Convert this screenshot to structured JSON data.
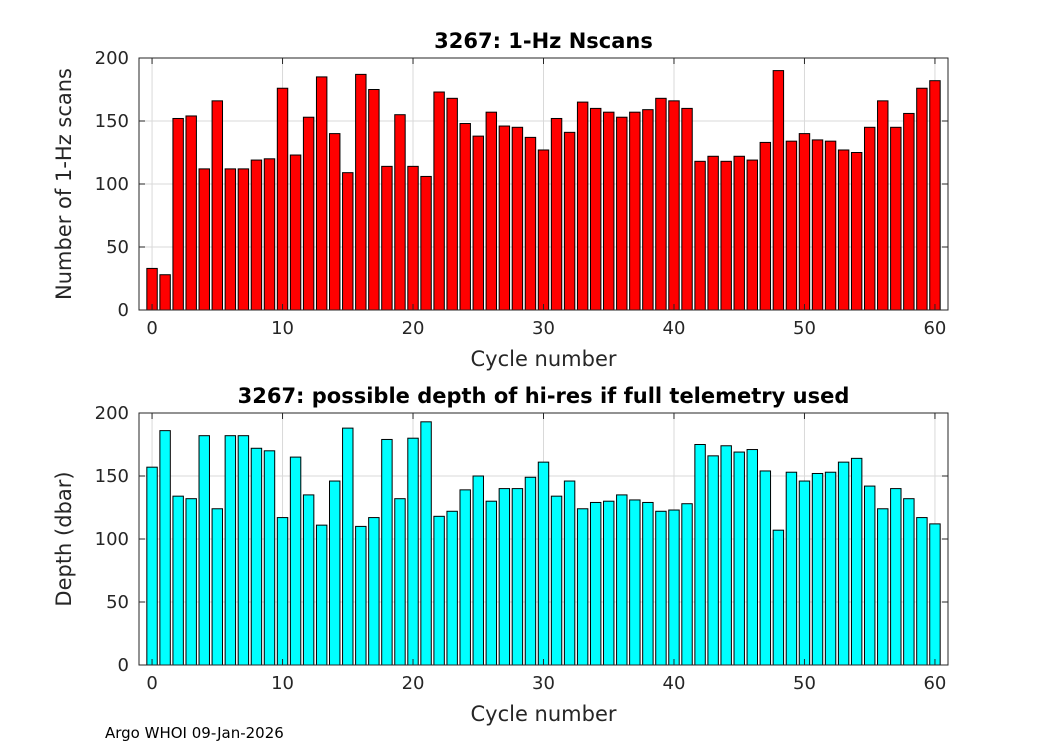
{
  "footer": "Argo WHOI 09-Jan-2026",
  "chart_data": [
    {
      "type": "bar",
      "title": "3267: 1-Hz Nscans",
      "xlabel": "Cycle number",
      "ylabel": "Number of 1-Hz scans",
      "bar_color": "#ff0000",
      "xlim": [
        -1,
        61
      ],
      "ylim": [
        0,
        200
      ],
      "xticks": [
        0,
        10,
        20,
        30,
        40,
        50,
        60
      ],
      "yticks": [
        0,
        50,
        100,
        150,
        200
      ],
      "grid": true,
      "x": [
        0,
        1,
        2,
        3,
        4,
        5,
        6,
        7,
        8,
        9,
        10,
        11,
        12,
        13,
        14,
        15,
        16,
        17,
        18,
        19,
        20,
        21,
        22,
        23,
        24,
        25,
        26,
        27,
        28,
        29,
        30,
        31,
        32,
        33,
        34,
        35,
        36,
        37,
        38,
        39,
        40,
        41,
        42,
        43,
        44,
        45,
        46,
        47,
        48,
        49,
        50,
        51,
        52,
        53,
        54,
        55,
        56,
        57,
        58,
        59,
        60
      ],
      "values": [
        33,
        28,
        152,
        154,
        112,
        166,
        112,
        112,
        119,
        120,
        176,
        123,
        153,
        185,
        140,
        109,
        187,
        175,
        114,
        155,
        114,
        106,
        173,
        168,
        148,
        138,
        157,
        146,
        145,
        137,
        127,
        152,
        141,
        165,
        160,
        157,
        153,
        157,
        159,
        168,
        166,
        160,
        118,
        122,
        118,
        122,
        119,
        133,
        190,
        134,
        140,
        135,
        134,
        127,
        125,
        145,
        166,
        145,
        156,
        176,
        182
      ]
    },
    {
      "type": "bar",
      "title": "3267: possible depth of hi-res if full telemetry used",
      "xlabel": "Cycle number",
      "ylabel": "Depth (dbar)",
      "bar_color": "#00ffff",
      "xlim": [
        -1,
        61
      ],
      "ylim": [
        0,
        200
      ],
      "xticks": [
        0,
        10,
        20,
        30,
        40,
        50,
        60
      ],
      "yticks": [
        0,
        50,
        100,
        150,
        200
      ],
      "grid": true,
      "x": [
        0,
        1,
        2,
        3,
        4,
        5,
        6,
        7,
        8,
        9,
        10,
        11,
        12,
        13,
        14,
        15,
        16,
        17,
        18,
        19,
        20,
        21,
        22,
        23,
        24,
        25,
        26,
        27,
        28,
        29,
        30,
        31,
        32,
        33,
        34,
        35,
        36,
        37,
        38,
        39,
        40,
        41,
        42,
        43,
        44,
        45,
        46,
        47,
        48,
        49,
        50,
        51,
        52,
        53,
        54,
        55,
        56,
        57,
        58,
        59,
        60
      ],
      "values": [
        157,
        186,
        134,
        132,
        182,
        124,
        182,
        182,
        172,
        170,
        117,
        165,
        135,
        111,
        146,
        188,
        110,
        117,
        179,
        132,
        180,
        193,
        118,
        122,
        139,
        150,
        130,
        140,
        140,
        149,
        161,
        134,
        146,
        124,
        129,
        130,
        135,
        131,
        129,
        122,
        123,
        128,
        175,
        166,
        174,
        169,
        171,
        154,
        107,
        153,
        146,
        152,
        153,
        161,
        164,
        142,
        124,
        140,
        132,
        117,
        112
      ]
    }
  ]
}
